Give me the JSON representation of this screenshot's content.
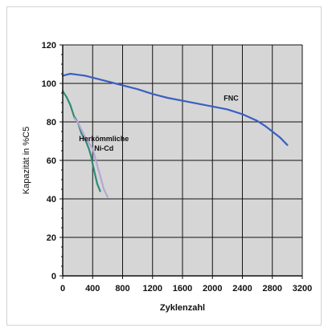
{
  "chart_data": {
    "type": "line",
    "xlabel": "Zyklenzahl",
    "ylabel": "Kapazität in %C5",
    "xlim": [
      0,
      3200
    ],
    "ylim": [
      0,
      120
    ],
    "x_ticks": [
      "0",
      "400",
      "800",
      "1200",
      "1600",
      "2000",
      "2400",
      "2800",
      "3200"
    ],
    "y_ticks": [
      "0",
      "20",
      "40",
      "60",
      "80",
      "100",
      "120"
    ],
    "grid": true,
    "plot_background": "#d6d6d6",
    "grid_color": "#111111",
    "series": [
      {
        "name": "FNC",
        "color": "#3a5fc4",
        "points": [
          [
            0,
            104
          ],
          [
            50,
            104.5
          ],
          [
            100,
            105
          ],
          [
            200,
            104.5
          ],
          [
            300,
            104
          ],
          [
            400,
            103
          ],
          [
            500,
            102
          ],
          [
            600,
            101
          ],
          [
            700,
            100
          ],
          [
            800,
            99
          ],
          [
            1000,
            97
          ],
          [
            1200,
            94.5
          ],
          [
            1400,
            92.5
          ],
          [
            1600,
            91
          ],
          [
            1800,
            89.5
          ],
          [
            2000,
            88
          ],
          [
            2200,
            86.5
          ],
          [
            2400,
            84
          ],
          [
            2600,
            80.5
          ],
          [
            2700,
            78
          ],
          [
            2800,
            75
          ],
          [
            2900,
            72
          ],
          [
            3000,
            68
          ]
        ]
      },
      {
        "name": "Herkömmliche Ni-Cd",
        "color": "#2e8b77",
        "points": [
          [
            0,
            96
          ],
          [
            50,
            93
          ],
          [
            100,
            89
          ],
          [
            150,
            83
          ],
          [
            200,
            80
          ],
          [
            250,
            74
          ],
          [
            300,
            71
          ],
          [
            350,
            66
          ],
          [
            380,
            62
          ],
          [
            400,
            58
          ],
          [
            430,
            53
          ],
          [
            460,
            48
          ],
          [
            500,
            44
          ]
        ]
      },
      {
        "name": "Herkömmliche Ni-Cd (2)",
        "color": "#b7a5d2",
        "points": [
          [
            150,
            82
          ],
          [
            200,
            80
          ],
          [
            250,
            76
          ],
          [
            300,
            72
          ],
          [
            350,
            69
          ],
          [
            400,
            66
          ],
          [
            450,
            59
          ],
          [
            500,
            52
          ],
          [
            550,
            45
          ],
          [
            600,
            41
          ]
        ]
      }
    ],
    "annotations": [
      {
        "text": "FNC",
        "x": 2250,
        "y": 91
      },
      {
        "text": "Herkömmliche",
        "x": 550,
        "y": 70
      },
      {
        "text": "Ni-Cd",
        "x": 550,
        "y": 65
      }
    ]
  }
}
